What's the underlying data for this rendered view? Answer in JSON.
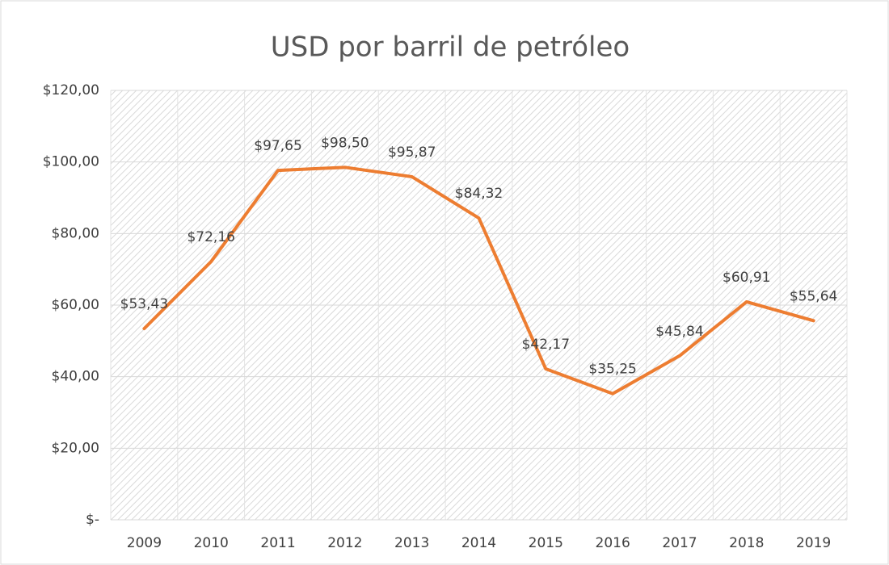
{
  "chart_data": {
    "type": "line",
    "title": "USD por barril de petróleo",
    "categories": [
      "2009",
      "2010",
      "2011",
      "2012",
      "2013",
      "2014",
      "2015",
      "2016",
      "2017",
      "2018",
      "2019"
    ],
    "values": [
      53.43,
      72.16,
      97.65,
      98.5,
      95.87,
      84.32,
      42.17,
      35.25,
      45.84,
      60.91,
      55.64
    ],
    "value_labels": [
      "$53,43",
      "$72,16",
      "$97,65",
      "$98,50",
      "$95,87",
      "$84,32",
      "$42,17",
      "$35,25",
      "$45,84",
      "$60,91",
      "$55,64"
    ],
    "color": "#ed7d31",
    "ylim": [
      0,
      120
    ],
    "yticks": [
      {
        "value": 0,
        "label": "$-"
      },
      {
        "value": 20,
        "label": "$20,00"
      },
      {
        "value": 40,
        "label": "$40,00"
      },
      {
        "value": 60,
        "label": "$60,00"
      },
      {
        "value": 80,
        "label": "$80,00"
      },
      {
        "value": 100,
        "label": "$100,00"
      },
      {
        "value": 120,
        "label": "$120,00"
      }
    ],
    "grid": true
  }
}
